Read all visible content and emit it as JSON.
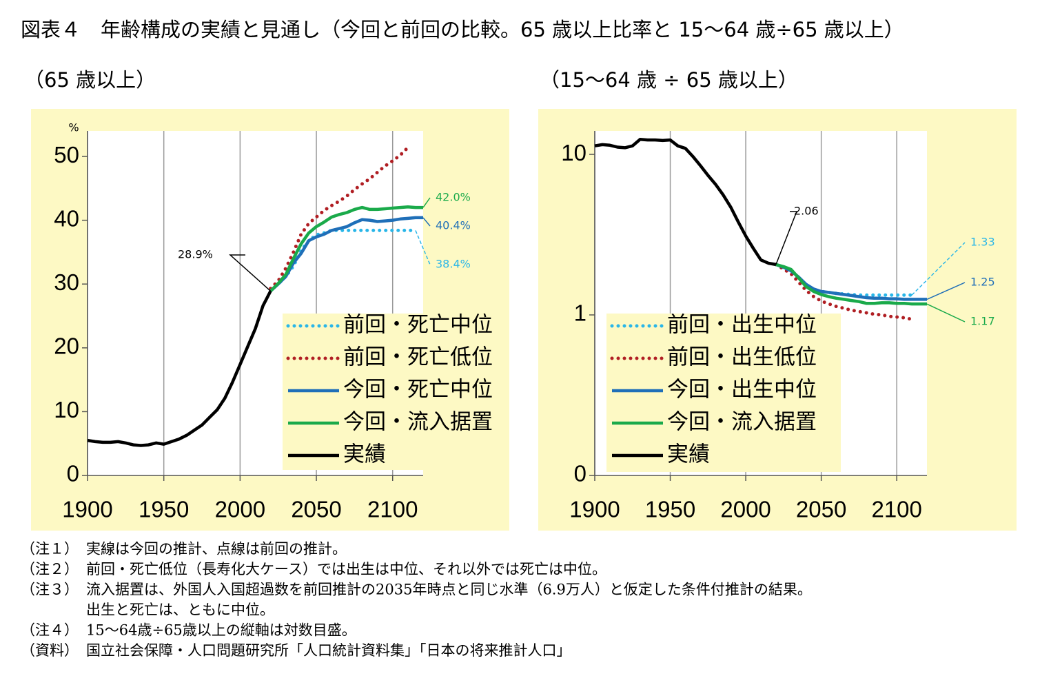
{
  "title": "図表４　年齢構成の実績と見通し（今回と前回の比較。65 歳以上比率と 15～64 歳÷65 歳以上）",
  "notes": [
    {
      "label": "（注１）",
      "lines": [
        "実線は今回の推計、点線は前回の推計。"
      ]
    },
    {
      "label": "（注２）",
      "lines": [
        "前回・死亡低位（長寿化大ケース）では出生は中位、それ以外では死亡は中位。"
      ]
    },
    {
      "label": "（注３）",
      "lines": [
        "流入据置は、外国人入国超過数を前回推計の2035年時点と同じ水準（6.9万人）と仮定した条件付推計の結果。",
        "出生と死亡は、ともに中位。"
      ]
    },
    {
      "label": "（注４）",
      "lines": [
        "15～64歳÷65歳以上の縦軸は対数目盛。"
      ]
    },
    {
      "label": "（資料）",
      "lines": [
        "国立社会保障・人口問題研究所「人口統計資料集」「日本の将来推計人口」"
      ]
    }
  ],
  "chart_data": [
    {
      "type": "line",
      "subtitle": "（65 歳以上）",
      "ylabel": "%",
      "grid": "x",
      "yscale": "linear",
      "xlim": [
        1900,
        2120
      ],
      "xticks": [
        1900,
        1950,
        2000,
        2050,
        2100
      ],
      "ylim": [
        0,
        54
      ],
      "yticks": [
        0,
        10,
        20,
        30,
        40,
        50
      ],
      "x": [
        1900,
        1905,
        1910,
        1915,
        1920,
        1925,
        1930,
        1935,
        1940,
        1945,
        1950,
        1955,
        1960,
        1965,
        1970,
        1975,
        1980,
        1985,
        1990,
        1995,
        2000,
        2005,
        2010,
        2015,
        2020,
        2025,
        2030,
        2035,
        2040,
        2045,
        2050,
        2055,
        2060,
        2065,
        2070,
        2075,
        2080,
        2085,
        2090,
        2095,
        2100,
        2105,
        2110,
        2115,
        2120
      ],
      "series": [
        {
          "name": "前回・死亡中位",
          "color": "#29b6e8",
          "style": "dotted",
          "values": [
            null,
            null,
            null,
            null,
            null,
            null,
            null,
            null,
            null,
            null,
            null,
            null,
            null,
            null,
            null,
            null,
            null,
            null,
            null,
            null,
            null,
            null,
            null,
            null,
            29.1,
            30.0,
            31.2,
            32.8,
            35.3,
            36.8,
            37.7,
            38.0,
            38.4,
            38.4,
            38.4,
            38.4,
            38.4,
            38.4,
            38.4,
            38.4,
            38.4,
            38.4,
            38.4,
            38.4,
            null
          ]
        },
        {
          "name": "前回・死亡低位",
          "color": "#b01e23",
          "style": "dotted",
          "values": [
            null,
            null,
            null,
            null,
            null,
            null,
            null,
            null,
            null,
            null,
            null,
            null,
            null,
            null,
            null,
            null,
            null,
            null,
            null,
            null,
            null,
            null,
            null,
            null,
            29.3,
            30.5,
            32.5,
            35.0,
            37.8,
            39.5,
            40.5,
            41.5,
            42.3,
            43.0,
            43.8,
            44.8,
            45.7,
            46.5,
            47.5,
            48.5,
            49.3,
            50.2,
            51.4,
            null,
            null
          ]
        },
        {
          "name": "今回・死亡中位",
          "color": "#1f6fb8",
          "style": "solid",
          "values": [
            null,
            null,
            null,
            null,
            null,
            null,
            null,
            null,
            null,
            null,
            null,
            null,
            null,
            null,
            null,
            null,
            null,
            null,
            null,
            null,
            null,
            null,
            null,
            null,
            28.9,
            30.0,
            31.2,
            33.3,
            34.8,
            36.8,
            37.4,
            37.8,
            38.4,
            38.7,
            39.0,
            39.6,
            40.1,
            40.0,
            39.8,
            39.9,
            40.0,
            40.2,
            40.3,
            40.4,
            40.4
          ]
        },
        {
          "name": "今回・流入据置",
          "color": "#1aaa4a",
          "style": "solid",
          "values": [
            null,
            null,
            null,
            null,
            null,
            null,
            null,
            null,
            null,
            null,
            null,
            null,
            null,
            null,
            null,
            null,
            null,
            null,
            null,
            null,
            null,
            null,
            null,
            null,
            28.9,
            30.1,
            31.5,
            34.0,
            36.3,
            38.0,
            39.0,
            39.7,
            40.5,
            40.9,
            41.2,
            41.7,
            42.0,
            41.7,
            41.7,
            41.8,
            41.9,
            42.0,
            42.1,
            42.0,
            42.0
          ]
        },
        {
          "name": "実績",
          "color": "#000000",
          "style": "solid",
          "values": [
            5.5,
            5.3,
            5.2,
            5.2,
            5.3,
            5.1,
            4.8,
            4.7,
            4.8,
            5.1,
            4.9,
            5.3,
            5.7,
            6.3,
            7.1,
            7.9,
            9.1,
            10.3,
            12.1,
            14.6,
            17.4,
            20.2,
            23.0,
            26.6,
            28.9,
            null,
            null,
            null,
            null,
            null,
            null,
            null,
            null,
            null,
            null,
            null,
            null,
            null,
            null,
            null,
            null,
            null,
            null,
            null,
            null
          ]
        }
      ],
      "annotations": [
        {
          "label": "28.9%",
          "x": 2020,
          "y": 28.9,
          "color": "#000000"
        },
        {
          "label": "42.0%",
          "x": 2120,
          "y": 42.0,
          "color": "#1aaa4a"
        },
        {
          "label": "40.4%",
          "x": 2120,
          "y": 40.4,
          "color": "#1f6fb8"
        },
        {
          "label": "38.4%",
          "x": 2115,
          "y": 38.4,
          "color": "#29b6e8"
        }
      ]
    },
    {
      "type": "line",
      "subtitle": "（15～64 歳 ÷ 65 歳以上）",
      "grid": "x",
      "yscale": "log",
      "xlim": [
        1900,
        2120
      ],
      "xticks": [
        1900,
        1950,
        2000,
        2050,
        2100
      ],
      "ylim": [
        0.1,
        14
      ],
      "yticks": [
        {
          "value": 0.1,
          "label": "0"
        },
        1,
        10
      ],
      "x": [
        1900,
        1905,
        1910,
        1915,
        1920,
        1925,
        1930,
        1935,
        1940,
        1945,
        1950,
        1955,
        1960,
        1965,
        1970,
        1975,
        1980,
        1985,
        1990,
        1995,
        2000,
        2005,
        2010,
        2015,
        2020,
        2025,
        2030,
        2035,
        2040,
        2045,
        2050,
        2055,
        2060,
        2065,
        2070,
        2075,
        2080,
        2085,
        2090,
        2095,
        2100,
        2105,
        2110,
        2115,
        2120
      ],
      "series": [
        {
          "name": "前回・出生中位",
          "color": "#29b6e8",
          "style": "dotted",
          "values": [
            null,
            null,
            null,
            null,
            null,
            null,
            null,
            null,
            null,
            null,
            null,
            null,
            null,
            null,
            null,
            null,
            null,
            null,
            null,
            null,
            null,
            null,
            null,
            null,
            2.06,
            1.95,
            1.85,
            1.68,
            1.52,
            1.44,
            1.4,
            1.38,
            1.36,
            1.35,
            1.34,
            1.33,
            1.33,
            1.33,
            1.33,
            1.33,
            1.33,
            1.33,
            1.33,
            null,
            null
          ]
        },
        {
          "name": "前回・出生低位",
          "color": "#b01e23",
          "style": "dotted",
          "values": [
            null,
            null,
            null,
            null,
            null,
            null,
            null,
            null,
            null,
            null,
            null,
            null,
            null,
            null,
            null,
            null,
            null,
            null,
            null,
            null,
            null,
            null,
            null,
            null,
            2.06,
            1.93,
            1.8,
            1.6,
            1.42,
            1.3,
            1.22,
            1.17,
            1.13,
            1.1,
            1.07,
            1.05,
            1.03,
            1.01,
            1.0,
            0.98,
            0.97,
            0.96,
            0.94,
            null,
            null
          ]
        },
        {
          "name": "今回・出生中位",
          "color": "#1f6fb8",
          "style": "solid",
          "values": [
            null,
            null,
            null,
            null,
            null,
            null,
            null,
            null,
            null,
            null,
            null,
            null,
            null,
            null,
            null,
            null,
            null,
            null,
            null,
            null,
            null,
            null,
            null,
            null,
            2.06,
            1.98,
            1.88,
            1.72,
            1.55,
            1.45,
            1.4,
            1.38,
            1.36,
            1.34,
            1.32,
            1.3,
            1.28,
            1.27,
            1.27,
            1.26,
            1.26,
            1.25,
            1.25,
            1.25,
            1.25
          ]
        },
        {
          "name": "今回・流入据置",
          "color": "#1aaa4a",
          "style": "solid",
          "values": [
            null,
            null,
            null,
            null,
            null,
            null,
            null,
            null,
            null,
            null,
            null,
            null,
            null,
            null,
            null,
            null,
            null,
            null,
            null,
            null,
            null,
            null,
            null,
            null,
            2.06,
            2.0,
            1.92,
            1.7,
            1.5,
            1.4,
            1.34,
            1.3,
            1.27,
            1.25,
            1.23,
            1.21,
            1.18,
            1.18,
            1.19,
            1.19,
            1.18,
            1.18,
            1.17,
            1.17,
            1.17
          ]
        },
        {
          "name": "実績",
          "color": "#000000",
          "style": "solid",
          "values": [
            11.3,
            11.5,
            11.4,
            11.1,
            11.0,
            11.3,
            12.4,
            12.3,
            12.3,
            12.2,
            12.3,
            11.3,
            10.9,
            9.7,
            8.5,
            7.4,
            6.5,
            5.6,
            4.7,
            3.8,
            3.1,
            2.6,
            2.2,
            2.1,
            2.06,
            null,
            null,
            null,
            null,
            null,
            null,
            null,
            null,
            null,
            null,
            null,
            null,
            null,
            null,
            null,
            null,
            null,
            null,
            null,
            null
          ]
        }
      ],
      "annotations": [
        {
          "label": "2.06",
          "x": 2020,
          "y": 2.06,
          "color": "#000000"
        },
        {
          "label": "1.33",
          "x": 2110,
          "y": 1.33,
          "color": "#29b6e8"
        },
        {
          "label": "1.25",
          "x": 2120,
          "y": 1.25,
          "color": "#1f6fb8"
        },
        {
          "label": "1.17",
          "x": 2120,
          "y": 1.17,
          "color": "#1aaa4a"
        }
      ]
    }
  ]
}
